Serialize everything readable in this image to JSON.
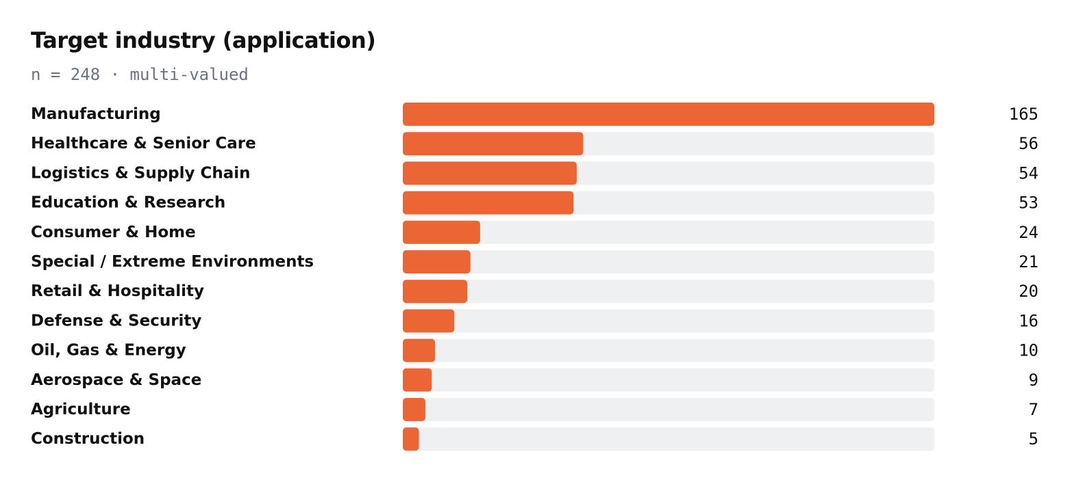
{
  "title": "Target industry (application)",
  "subtitle": "n = 248 · multi-valued",
  "colors": {
    "bar": "#ec6635",
    "track": "#eef0f2",
    "text": "#111111",
    "muted": "#6b7280"
  },
  "chart_data": {
    "type": "bar",
    "orientation": "horizontal",
    "title": "Target industry (application)",
    "subtitle": "n = 248 · multi-valued",
    "xlabel": "",
    "ylabel": "",
    "xlim": [
      0,
      165
    ],
    "grid": false,
    "legend": "none",
    "categories": [
      "Manufacturing",
      "Healthcare & Senior Care",
      "Logistics & Supply Chain",
      "Education & Research",
      "Consumer & Home",
      "Special / Extreme Environments",
      "Retail & Hospitality",
      "Defense & Security",
      "Oil, Gas & Energy",
      "Aerospace & Space",
      "Agriculture",
      "Construction"
    ],
    "values": [
      165,
      56,
      54,
      53,
      24,
      21,
      20,
      16,
      10,
      9,
      7,
      5
    ]
  }
}
